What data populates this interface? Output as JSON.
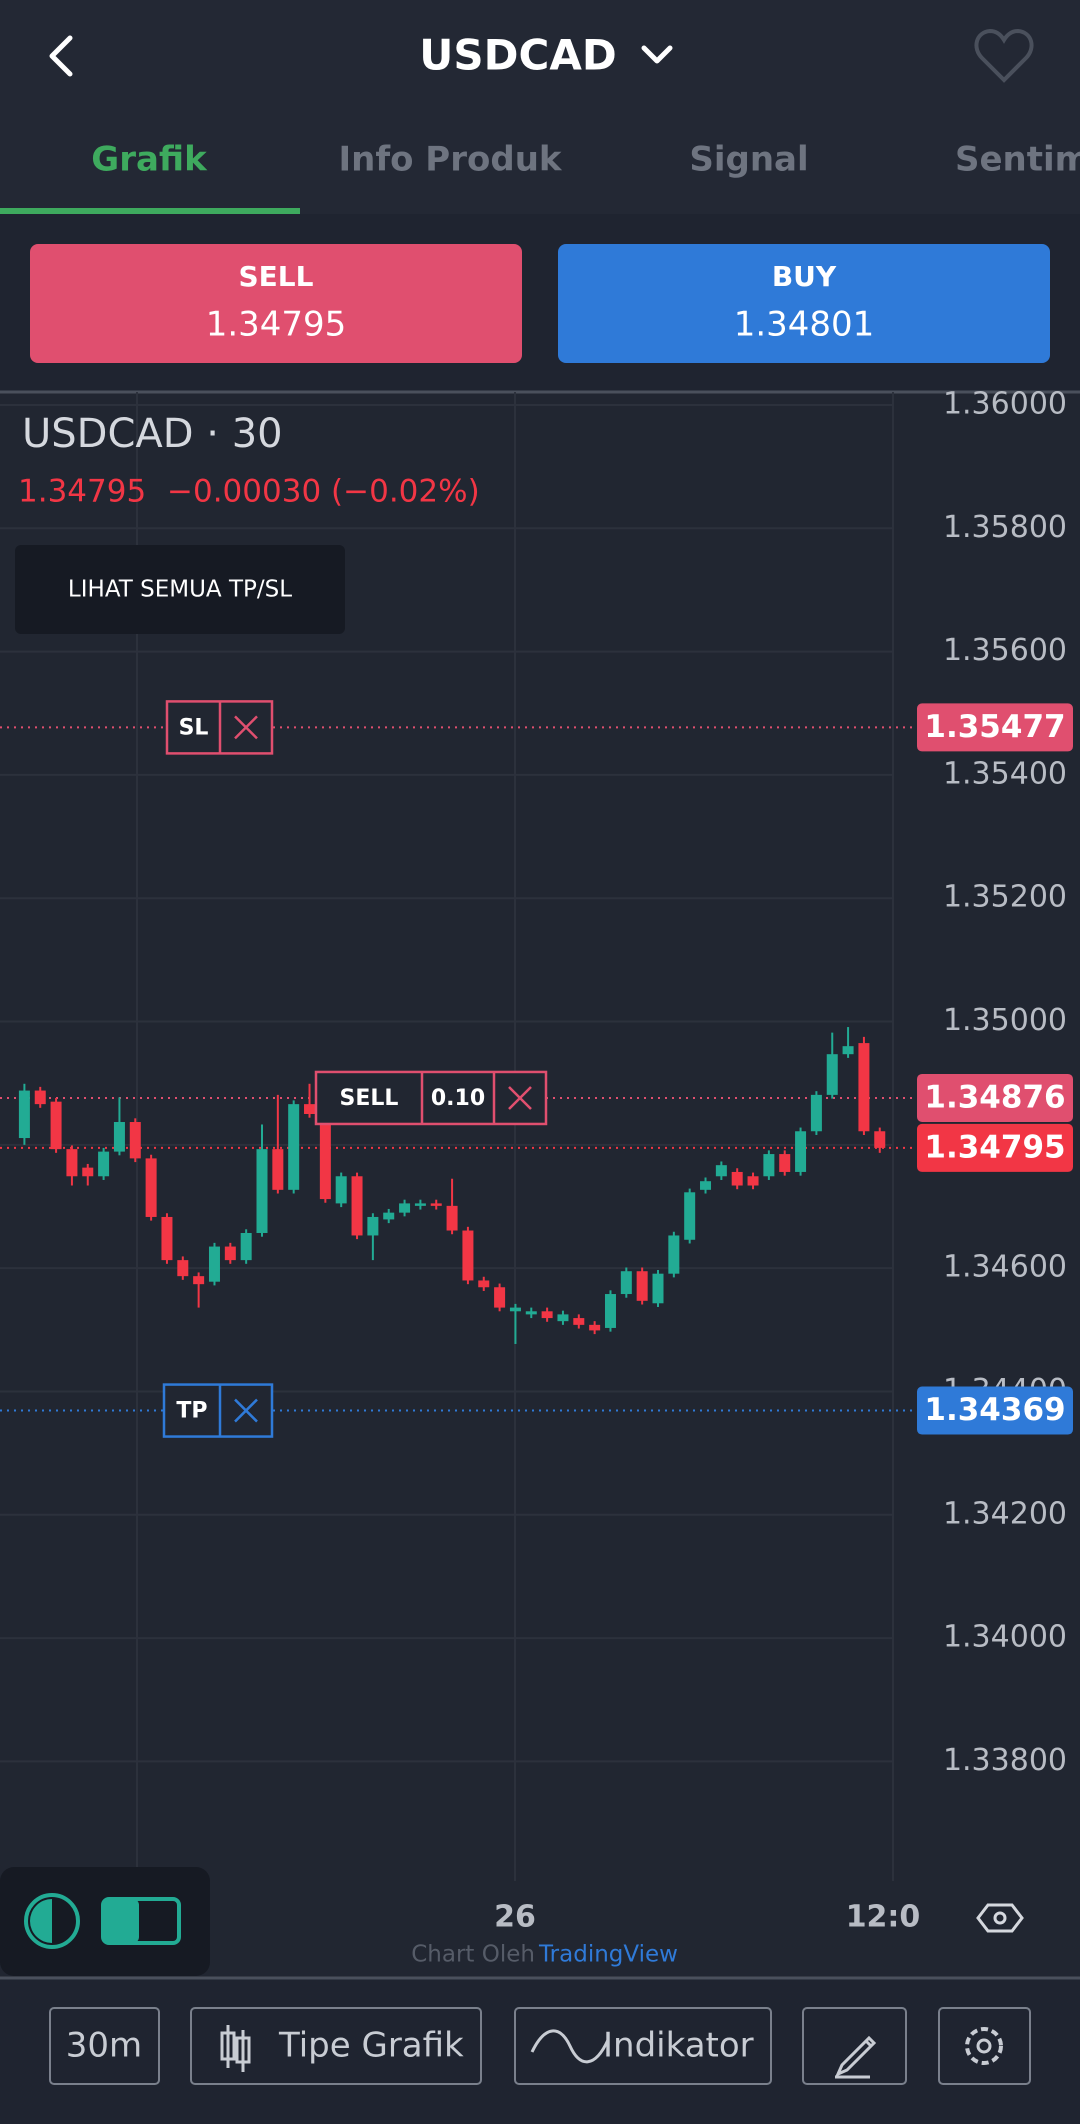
{
  "header": {
    "title": "USDCAD"
  },
  "tabs": [
    "Grafik",
    "Info Produk",
    "Signal",
    "Sentim"
  ],
  "sell": {
    "label": "SELL",
    "price": "1.34795"
  },
  "buy": {
    "label": "BUY",
    "price": "1.34801"
  },
  "chart_data": {
    "type": "candlestick",
    "title": "USDCAD · 30",
    "last": "1.34795",
    "change": "−0.00030 (−0.02%)",
    "up_color": "#22ab94",
    "down_color": "#f23645",
    "open": [
      1.34811,
      1.34888,
      1.3487,
      1.34793,
      1.34763,
      1.34749,
      1.34789,
      1.34837,
      1.34778,
      1.34683,
      1.34613,
      1.34587,
      1.34578,
      1.34635,
      1.34613,
      1.34657,
      1.34793,
      1.34727,
      1.34866,
      1.34837,
      1.34705,
      1.34749,
      1.34653,
      1.34679,
      1.3469,
      1.34701,
      1.34705,
      1.34701,
      1.34661,
      1.3458,
      1.34569,
      1.3453,
      1.34525,
      1.3453,
      1.34514,
      1.34519,
      1.34508,
      1.34503,
      1.34558,
      1.34595,
      1.34543,
      1.34591,
      1.34646,
      1.34727,
      1.34749,
      1.34756,
      1.34749,
      1.34749,
      1.34785,
      1.34756,
      1.34822,
      1.34881,
      1.34947,
      1.34965,
      1.34822
    ],
    "high": [
      1.34899,
      1.34894,
      1.34876,
      1.34799,
      1.34769,
      1.34795,
      1.34877,
      1.34843,
      1.34784,
      1.34689,
      1.34619,
      1.34593,
      1.34641,
      1.34641,
      1.34663,
      1.34833,
      1.34881,
      1.34872,
      1.34899,
      1.34843,
      1.34755,
      1.34755,
      1.34689,
      1.34696,
      1.34711,
      1.34711,
      1.34711,
      1.34745,
      1.34667,
      1.34586,
      1.34575,
      1.34542,
      1.34536,
      1.34536,
      1.34531,
      1.34525,
      1.34514,
      1.34564,
      1.34601,
      1.34601,
      1.34597,
      1.34659,
      1.34729,
      1.34747,
      1.34773,
      1.34762,
      1.34755,
      1.34791,
      1.34791,
      1.34828,
      1.34887,
      1.34982,
      1.34991,
      1.34975,
      1.34828
    ],
    "low": [
      1.348,
      1.3486,
      1.34787,
      1.34734,
      1.34734,
      1.34743,
      1.34783,
      1.34772,
      1.34677,
      1.34607,
      1.34581,
      1.34536,
      1.34572,
      1.34607,
      1.34607,
      1.34651,
      1.34721,
      1.34721,
      1.34844,
      1.34706,
      1.34699,
      1.34647,
      1.34613,
      1.34673,
      1.34684,
      1.34695,
      1.34695,
      1.34655,
      1.34574,
      1.34563,
      1.3453,
      1.34477,
      1.34519,
      1.34513,
      1.34508,
      1.34502,
      1.34493,
      1.34497,
      1.34552,
      1.34541,
      1.34537,
      1.34585,
      1.3464,
      1.34721,
      1.34743,
      1.34728,
      1.34728,
      1.34743,
      1.3475,
      1.3475,
      1.34816,
      1.34875,
      1.34941,
      1.34816,
      1.34787
    ],
    "close": [
      1.34888,
      1.34866,
      1.34793,
      1.34749,
      1.34749,
      1.34789,
      1.34837,
      1.34778,
      1.34683,
      1.34613,
      1.34587,
      1.34574,
      1.34635,
      1.34613,
      1.34657,
      1.34793,
      1.34727,
      1.34866,
      1.3485,
      1.34712,
      1.34749,
      1.34653,
      1.34683,
      1.3469,
      1.34705,
      1.34705,
      1.34701,
      1.34661,
      1.3458,
      1.34569,
      1.34536,
      1.34536,
      1.3453,
      1.34519,
      1.34525,
      1.34508,
      1.34499,
      1.34558,
      1.34595,
      1.34547,
      1.34591,
      1.34653,
      1.34723,
      1.34741,
      1.34767,
      1.34734,
      1.34734,
      1.34785,
      1.34756,
      1.34822,
      1.34881,
      1.34947,
      1.3496,
      1.34822,
      1.34795
    ],
    "ylim": [
      1.33606,
      1.36021
    ],
    "yticks": [
      {
        "value": 1.36,
        "label": "1.36000"
      },
      {
        "value": 1.358,
        "label": "1.35800"
      },
      {
        "value": 1.356,
        "label": "1.35600"
      },
      {
        "value": 1.354,
        "label": "1.35400"
      },
      {
        "value": 1.352,
        "label": "1.35200"
      },
      {
        "value": 1.35,
        "label": "1.35000"
      },
      {
        "value": 1.348,
        "label": "1.34800"
      },
      {
        "value": 1.346,
        "label": "1.34600"
      },
      {
        "value": 1.344,
        "label": "1.34400"
      },
      {
        "value": 1.342,
        "label": "1.34200"
      },
      {
        "value": 1.34,
        "label": "1.34000"
      },
      {
        "value": 1.338,
        "label": "1.33800"
      }
    ],
    "price_lines": [
      {
        "name": "SL",
        "value": 1.35477,
        "color": "#e04f6f"
      },
      {
        "name": "SELL",
        "volume": "0.10",
        "value": 1.34876,
        "color": "#e04f6f"
      },
      {
        "value": 1.34795,
        "color": "#f23645"
      },
      {
        "name": "TP",
        "value": 1.34369,
        "color": "#2f7ad8"
      }
    ],
    "grid": true,
    "x_labels": [
      "26",
      "12:0"
    ]
  },
  "tp_sl_button": "LIHAT SEMUA TP/SL",
  "credit": {
    "prefix": "Chart Oleh",
    "brand": "TradingView"
  },
  "toolbar": [
    "30m",
    "Tipe Grafik",
    "Indikator"
  ]
}
